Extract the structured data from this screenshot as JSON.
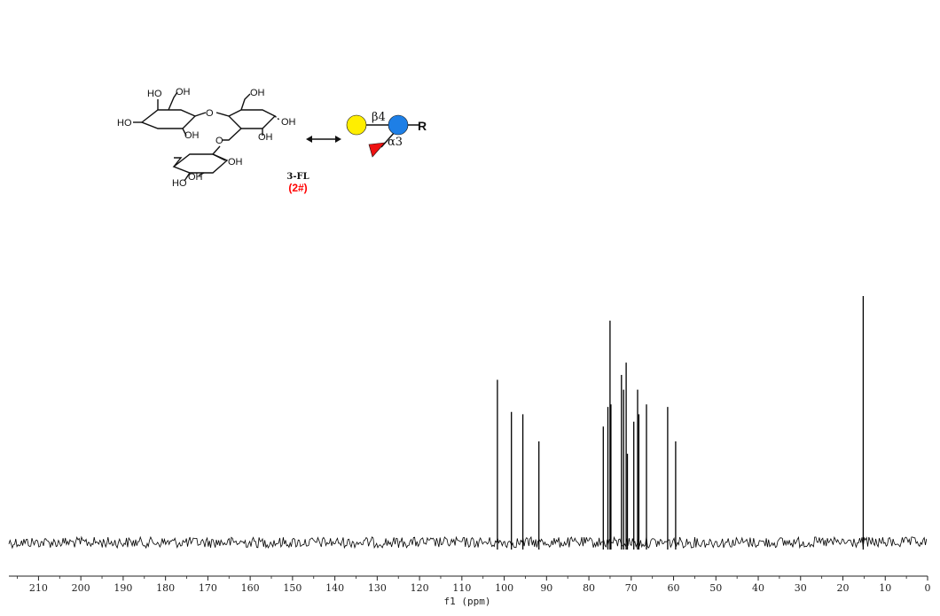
{
  "compound": {
    "name": "3-FL",
    "id": "(2#)",
    "id_color": "#ff0000",
    "atom_labels": [
      "HO",
      "OH",
      "OH",
      "O",
      "OH",
      "HO",
      "OH",
      "OH",
      "O",
      "OH",
      "HO",
      "OH"
    ],
    "glycan": {
      "linkage_1": "β4",
      "linkage_2": "α3",
      "reducing_end": "R",
      "galactose_color": "#ffee00",
      "glucose_color": "#1e7fe6",
      "fucose_color": "#ee1111",
      "symbols": [
        "yellow-circle-galactose",
        "blue-circle-glucose",
        "red-triangle-fucose"
      ]
    },
    "arrow_symbol": "double-headed-arrow"
  },
  "chart_data": {
    "type": "line",
    "title": "",
    "xlabel": "f1 (ppm)",
    "ylabel": "",
    "xlim": [
      217,
      0
    ],
    "x_reversed": true,
    "x_ticks": [
      210,
      200,
      190,
      180,
      170,
      160,
      150,
      140,
      130,
      120,
      110,
      100,
      90,
      80,
      70,
      60,
      50,
      40,
      30,
      20,
      10,
      0
    ],
    "grid": false,
    "line_color": "#000000",
    "noise_amplitude": 0.04,
    "peaks": [
      {
        "ppm": 101.6,
        "intensity": 0.66
      },
      {
        "ppm": 98.3,
        "intensity": 0.53
      },
      {
        "ppm": 95.6,
        "intensity": 0.52
      },
      {
        "ppm": 91.8,
        "intensity": 0.41
      },
      {
        "ppm": 76.6,
        "intensity": 0.47
      },
      {
        "ppm": 75.5,
        "intensity": 0.55
      },
      {
        "ppm": 75.0,
        "intensity": 0.9
      },
      {
        "ppm": 74.8,
        "intensity": 0.56
      },
      {
        "ppm": 72.3,
        "intensity": 0.68
      },
      {
        "ppm": 71.8,
        "intensity": 0.62
      },
      {
        "ppm": 71.2,
        "intensity": 0.73
      },
      {
        "ppm": 70.9,
        "intensity": 0.36
      },
      {
        "ppm": 69.4,
        "intensity": 0.49
      },
      {
        "ppm": 68.5,
        "intensity": 0.62
      },
      {
        "ppm": 68.2,
        "intensity": 0.52
      },
      {
        "ppm": 66.4,
        "intensity": 0.56
      },
      {
        "ppm": 61.4,
        "intensity": 0.55
      },
      {
        "ppm": 59.5,
        "intensity": 0.41
      },
      {
        "ppm": 15.2,
        "intensity": 1.0
      }
    ]
  }
}
